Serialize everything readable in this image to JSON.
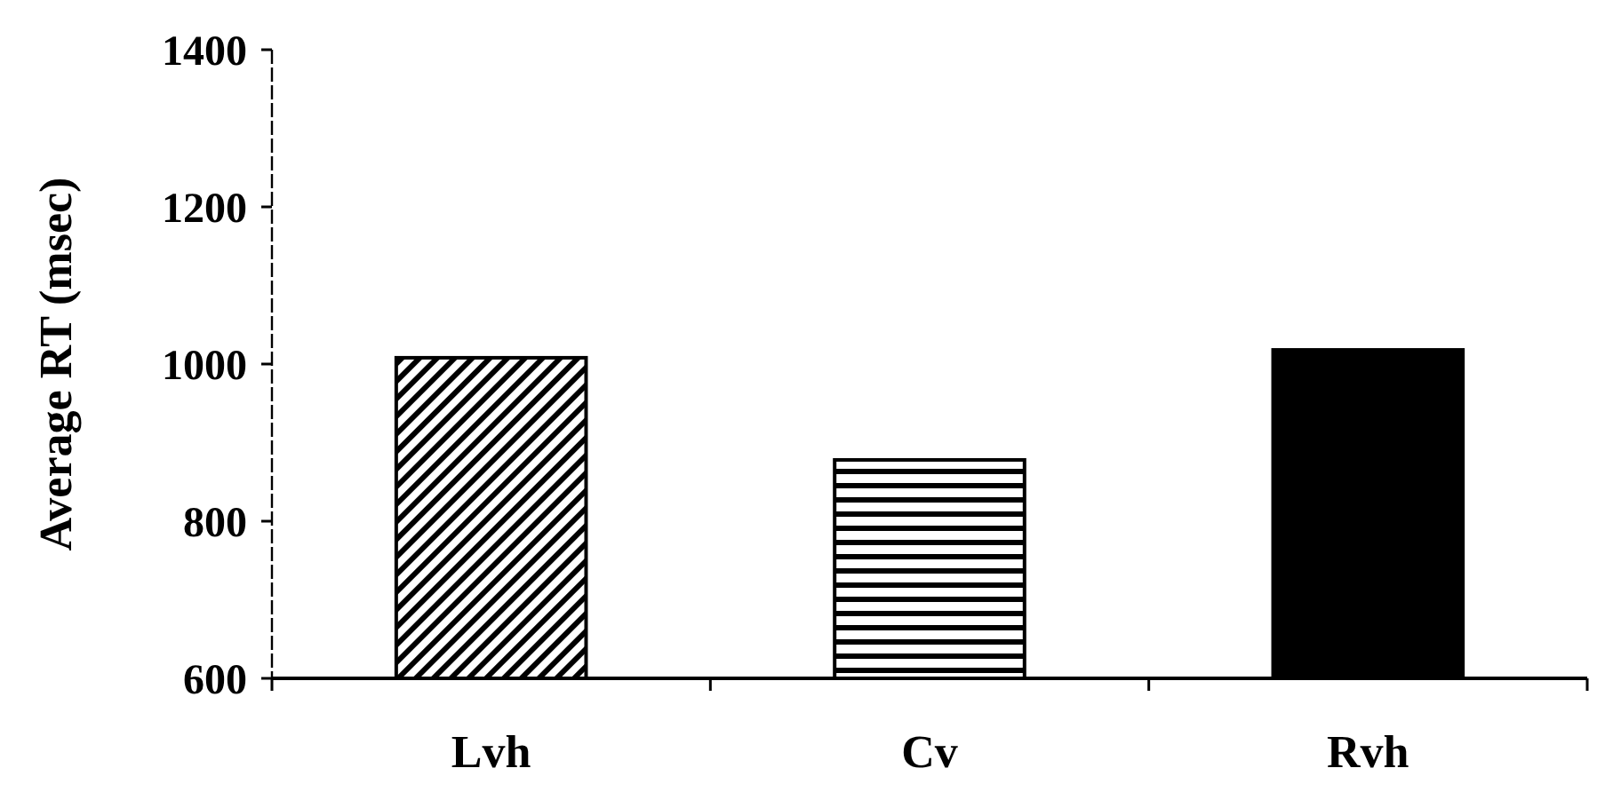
{
  "chart_data": {
    "type": "bar",
    "ylabel": "Average RT (msec)",
    "categories": [
      "Lvh",
      "Cv",
      "Rvh"
    ],
    "values": [
      1008,
      878,
      1018
    ],
    "colors": [
      "#000000",
      "#000000",
      "#000000"
    ],
    "ylim": [
      600,
      1400
    ],
    "yticks": [
      600,
      800,
      1000,
      1200,
      1400
    ],
    "grid": false
  }
}
